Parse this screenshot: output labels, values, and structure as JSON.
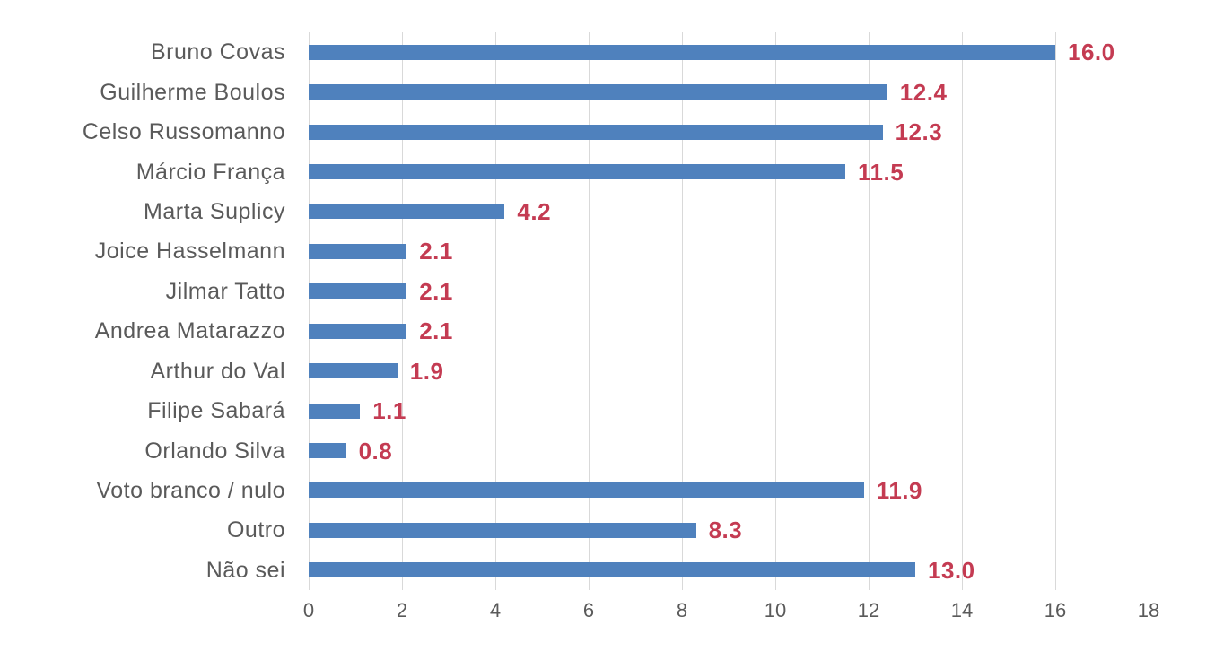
{
  "chart_data": {
    "type": "bar",
    "orientation": "horizontal",
    "title": "",
    "xlabel": "",
    "ylabel": "",
    "categories": [
      "Bruno Covas",
      "Guilherme Boulos",
      "Celso Russomanno",
      "Márcio França",
      "Marta Suplicy",
      "Joice Hasselmann",
      "Jilmar Tatto",
      "Andrea Matarazzo",
      "Arthur do Val",
      "Filipe Sabará",
      "Orlando Silva",
      "Voto branco / nulo",
      "Outro",
      "Não sei"
    ],
    "values": [
      16.0,
      12.4,
      12.3,
      11.5,
      4.2,
      2.1,
      2.1,
      2.1,
      1.9,
      1.1,
      0.8,
      11.9,
      8.3,
      13.0
    ],
    "value_labels": [
      "16.0",
      "12.4",
      "12.3",
      "11.5",
      "4.2",
      "2.1",
      "2.1",
      "2.1",
      "1.9",
      "1.1",
      "0.8",
      "11.9",
      "8.3",
      "13.0"
    ],
    "xlim": [
      0,
      18
    ],
    "xticks": [
      0,
      2,
      4,
      6,
      8,
      10,
      12,
      14,
      16,
      18
    ],
    "grid": "vertical-gridlines",
    "legend": "none",
    "colors": {
      "bar": "#4F81BD",
      "value_label": "#C43B52",
      "category_label": "#5A5A5A",
      "tick_label": "#5A5A5A",
      "gridline": "#D9D9D9",
      "background": "#FFFFFF"
    }
  }
}
